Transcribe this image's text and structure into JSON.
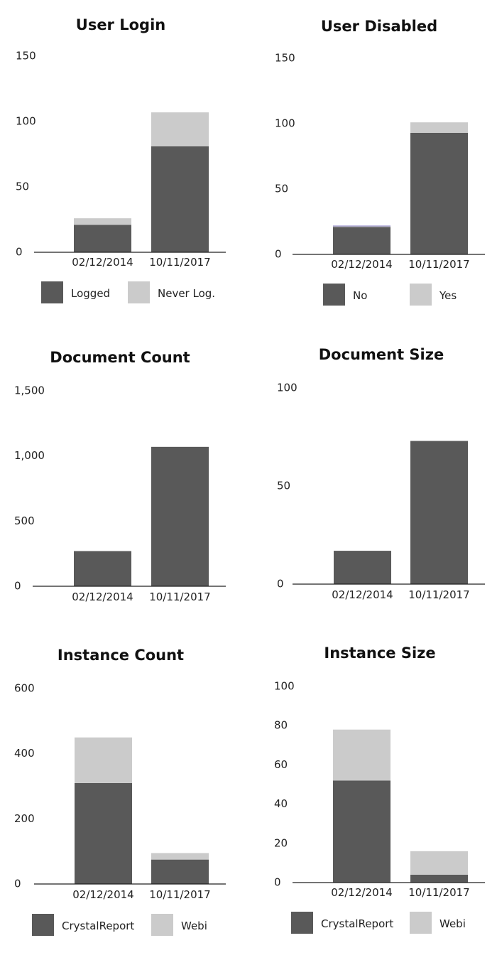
{
  "colors": {
    "dark": "#595959",
    "light": "#cbcbcb",
    "axis": "#222222",
    "accent_line": "#8a7fc4"
  },
  "chart_data": [
    {
      "type": "bar",
      "stacked": true,
      "title": "User Login",
      "categories": [
        "02/12/2014",
        "10/11/2017"
      ],
      "yticks": [
        "0",
        "50",
        "100",
        "150"
      ],
      "ylim": [
        0,
        150
      ],
      "series": [
        {
          "name": "Logged",
          "values": [
            21,
            81
          ],
          "color": "#595959"
        },
        {
          "name": "Never Log.",
          "values": [
            5,
            26
          ],
          "color": "#cbcbcb"
        }
      ],
      "legend": "bottom"
    },
    {
      "type": "bar",
      "stacked": true,
      "title": "User Disabled",
      "categories": [
        "02/12/2014",
        "10/11/2017"
      ],
      "yticks": [
        "0",
        "50",
        "100",
        "150"
      ],
      "ylim": [
        0,
        150
      ],
      "series": [
        {
          "name": "No",
          "values": [
            21,
            93
          ],
          "color": "#595959"
        },
        {
          "name": "Yes",
          "values": [
            1,
            8
          ],
          "color": "#cbcbcb"
        }
      ],
      "legend": "bottom"
    },
    {
      "type": "bar",
      "stacked": false,
      "title": "Document Count",
      "categories": [
        "02/12/2014",
        "10/11/2017"
      ],
      "yticks": [
        "0",
        "500",
        "1,000",
        "1,500"
      ],
      "ylim": [
        0,
        1500
      ],
      "series": [
        {
          "values": [
            270,
            1070
          ],
          "color": "#595959"
        }
      ],
      "legend": "none"
    },
    {
      "type": "bar",
      "stacked": false,
      "title": "Document Size",
      "categories": [
        "02/12/2014",
        "10/11/2017"
      ],
      "yticks": [
        "0",
        "50",
        "100"
      ],
      "ylim": [
        0,
        100
      ],
      "series": [
        {
          "values": [
            17,
            73
          ],
          "color": "#595959"
        }
      ],
      "legend": "none"
    },
    {
      "type": "bar",
      "stacked": true,
      "title": "Instance Count",
      "categories": [
        "02/12/2014",
        "10/11/2017"
      ],
      "yticks": [
        "0",
        "200",
        "400",
        "600"
      ],
      "ylim": [
        0,
        600
      ],
      "series": [
        {
          "name": "CrystalReport",
          "values": [
            310,
            75
          ],
          "color": "#595959"
        },
        {
          "name": "Webi",
          "values": [
            140,
            20
          ],
          "color": "#cbcbcb"
        }
      ],
      "legend": "bottom"
    },
    {
      "type": "bar",
      "stacked": true,
      "title": "Instance Size",
      "categories": [
        "02/12/2014",
        "10/11/2017"
      ],
      "yticks": [
        "0",
        "20",
        "40",
        "60",
        "80",
        "100"
      ],
      "ylim": [
        0,
        100
      ],
      "series": [
        {
          "name": "CrystalReport",
          "values": [
            52,
            4
          ],
          "color": "#595959"
        },
        {
          "name": "Webi",
          "values": [
            26,
            12
          ],
          "color": "#cbcbcb"
        }
      ],
      "legend": "bottom"
    }
  ]
}
